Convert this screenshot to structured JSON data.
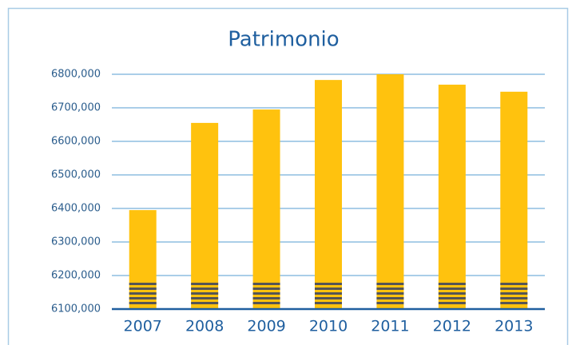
{
  "chart_data": {
    "type": "bar",
    "title": "Patrimonio",
    "categories": [
      "2007",
      "2008",
      "2009",
      "2010",
      "2011",
      "2012",
      "2013"
    ],
    "values": [
      6395000,
      6655000,
      6695000,
      6783000,
      6800000,
      6769000,
      6748000
    ],
    "color": "#ffc20e",
    "ylim": [
      6100000,
      6800000
    ],
    "yticks": [
      {
        "value": 6100000,
        "label": "6100,000"
      },
      {
        "value": 6200000,
        "label": "6200,000"
      },
      {
        "value": 6300000,
        "label": "6300,000"
      },
      {
        "value": 6400000,
        "label": "6400,000"
      },
      {
        "value": 6500000,
        "label": "6500,000"
      },
      {
        "value": 6600000,
        "label": "6600,000"
      },
      {
        "value": 6700000,
        "label": "6700,000"
      },
      {
        "value": 6800000,
        "label": "6800,000"
      }
    ],
    "grid": true
  }
}
